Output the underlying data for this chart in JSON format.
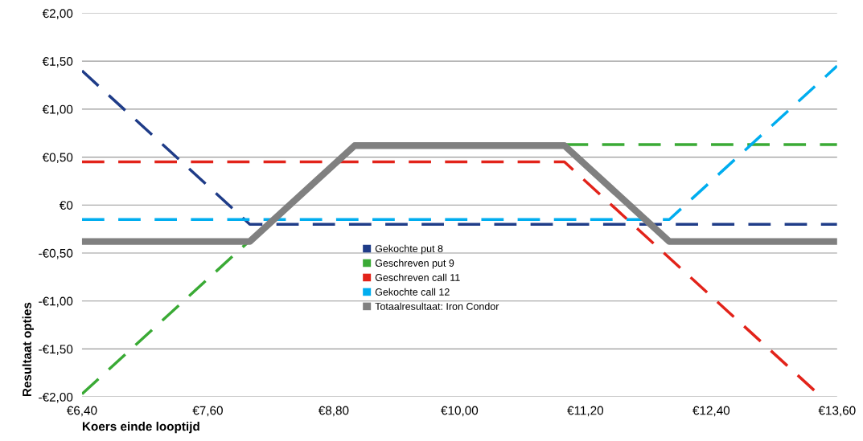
{
  "chart_data": {
    "type": "line",
    "xlabel": "Koers einde looptijd",
    "ylabel": "Resultaat opties",
    "xlim": [
      6.4,
      13.6
    ],
    "ylim": [
      -2.0,
      2.0
    ],
    "xticks": [
      {
        "value": 6.4,
        "label": "€6,40"
      },
      {
        "value": 7.6,
        "label": "€7,60"
      },
      {
        "value": 8.8,
        "label": "€8,80"
      },
      {
        "value": 10.0,
        "label": "€10,00"
      },
      {
        "value": 11.2,
        "label": "€11,20"
      },
      {
        "value": 12.4,
        "label": "€12,40"
      },
      {
        "value": 13.6,
        "label": "€13,60"
      }
    ],
    "yticks": [
      {
        "value": -2.0,
        "label": "-€2,00"
      },
      {
        "value": -1.5,
        "label": "-€1,50"
      },
      {
        "value": -1.0,
        "label": "-€1,00"
      },
      {
        "value": -0.5,
        "label": "-€0,50"
      },
      {
        "value": 0,
        "label": "€0"
      },
      {
        "value": 0.5,
        "label": "€0,50"
      },
      {
        "value": 1.0,
        "label": "€1,00"
      },
      {
        "value": 1.5,
        "label": "€1,50"
      },
      {
        "value": 2.0,
        "label": "€2,00"
      }
    ],
    "grid": "y",
    "legend": "center",
    "marker": "none",
    "series": [
      {
        "name": "Gekochte put 8",
        "color": "#1f3c88",
        "line_style": "dashed",
        "x": [
          6.4,
          8.0,
          13.6
        ],
        "values": [
          1.4,
          -0.2,
          -0.2
        ]
      },
      {
        "name": "Geschreven put 9",
        "color": "#3aaa35",
        "line_style": "dashed",
        "x": [
          6.4,
          9.0,
          13.6
        ],
        "values": [
          -1.97,
          0.63,
          0.63
        ]
      },
      {
        "name": "Geschreven call 11",
        "color": "#e2231a",
        "line_style": "dashed",
        "x": [
          6.4,
          11.0,
          13.45
        ],
        "values": [
          0.45,
          0.45,
          -2.0
        ]
      },
      {
        "name": "Gekochte call 12",
        "color": "#00adef",
        "line_style": "dashed",
        "x": [
          6.4,
          12.0,
          13.6
        ],
        "values": [
          -0.15,
          -0.15,
          1.45
        ]
      },
      {
        "name": "Totaalresultaat: Iron Condor",
        "color": "#808080",
        "line_style": "solid",
        "x": [
          6.4,
          8.0,
          9.0,
          11.0,
          12.0,
          13.6
        ],
        "values": [
          -0.38,
          -0.38,
          0.62,
          0.62,
          -0.38,
          -0.38
        ]
      }
    ]
  }
}
